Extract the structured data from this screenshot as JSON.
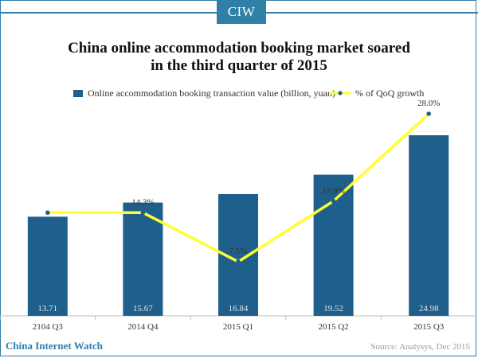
{
  "brand": {
    "badge": "CIW",
    "footer_left": "China Internet Watch"
  },
  "source": "Source: Analysys, Dec 2015",
  "colors": {
    "accent": "#2f7fa6",
    "bar": "#1f5f8b",
    "line": "#ffff33",
    "marker": "#1f5f8b"
  },
  "chart_data": {
    "type": "bar",
    "title": "China online accommodation booking market soared in the third quarter of 2015",
    "title_lines": [
      "China online accommodation booking market soared",
      "in the third quarter of 2015"
    ],
    "categories": [
      "2104 Q3",
      "2014 Q4",
      "2015 Q1",
      "2015 Q2",
      "2015 Q3"
    ],
    "series": [
      {
        "name": "Online accommodation booking transaction value (billion, yuan)",
        "type": "bar",
        "values": [
          13.71,
          15.67,
          16.84,
          19.52,
          24.98
        ],
        "labels": [
          "13.71",
          "15.67",
          "16.84",
          "19.52",
          "24.98"
        ]
      },
      {
        "name": "% of QoQ growth",
        "type": "line",
        "values": [
          14.3,
          14.3,
          7.5,
          15.9,
          28.0
        ],
        "labels": [
          "",
          "14.3%",
          "7.5%",
          "15.9%",
          "28.0%"
        ]
      }
    ],
    "bar_axis": {
      "min": 0,
      "max": 30
    },
    "line_axis": {
      "min": 0,
      "max": 30
    },
    "legend": "top",
    "grid": false
  }
}
